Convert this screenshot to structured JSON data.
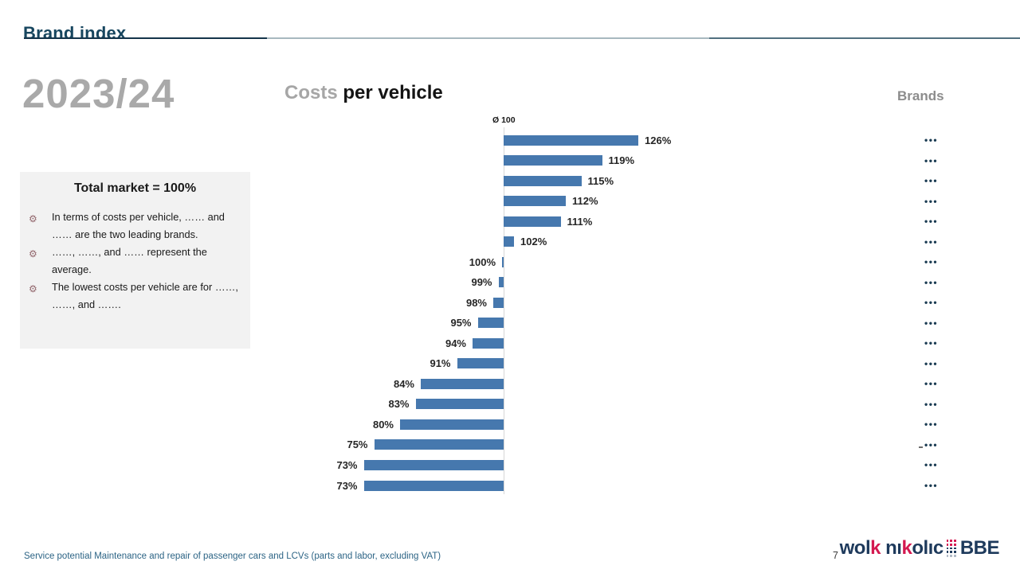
{
  "page": {
    "title": "Brand index",
    "page_number": "7"
  },
  "period": {
    "label": "2023/24"
  },
  "info_box": {
    "title": "Total market = 100%",
    "bullets": [
      "In terms of costs per vehicle, …… and …… are the two leading brands.",
      "……, ……, and …… represent the average.",
      "The lowest costs per vehicle are for ……, ……, and ……."
    ]
  },
  "chart": {
    "title_prefix": "Costs",
    "title_main": "per vehicle",
    "brands_header": "Brands"
  },
  "chart_data": {
    "type": "bar",
    "orientation": "horizontal",
    "title": "Costs per vehicle",
    "baseline": 100,
    "baseline_label": "Ø 100",
    "unit": "%",
    "values": [
      126,
      119,
      115,
      112,
      111,
      102,
      100,
      99,
      98,
      95,
      94,
      91,
      84,
      83,
      80,
      75,
      73,
      73
    ],
    "value_labels": [
      "126%",
      "119%",
      "115%",
      "112%",
      "111%",
      "102%",
      "100%",
      "99%",
      "98%",
      "95%",
      "94%",
      "91%",
      "84%",
      "83%",
      "80%",
      "75%",
      "73%",
      "73%"
    ],
    "categories": [
      "•••",
      "•••",
      "•••",
      "•••",
      "•••",
      "•••",
      "•••",
      "•••",
      "•••",
      "•••",
      "•••",
      "•••",
      "•••",
      "•••",
      "•••",
      "•••",
      "•••",
      "•••"
    ],
    "xlim": [
      70,
      130
    ],
    "bar_color": "#4678AE",
    "dots_color": "#1A3B52",
    "annotations": {
      "dash_before_row_index": 15
    },
    "legend": null,
    "grid": false
  },
  "footer": {
    "source": "Service potential Maintenance and repair of passenger cars and LCVs (parts and labor, excluding VAT)",
    "logo": {
      "wol": "wol",
      "k1": "k",
      "nik": " nı",
      "k2": "k",
      "olic": "olıc",
      "bbe": "BBE",
      "navy": "#1E3A5C",
      "red": "#D41950"
    }
  }
}
